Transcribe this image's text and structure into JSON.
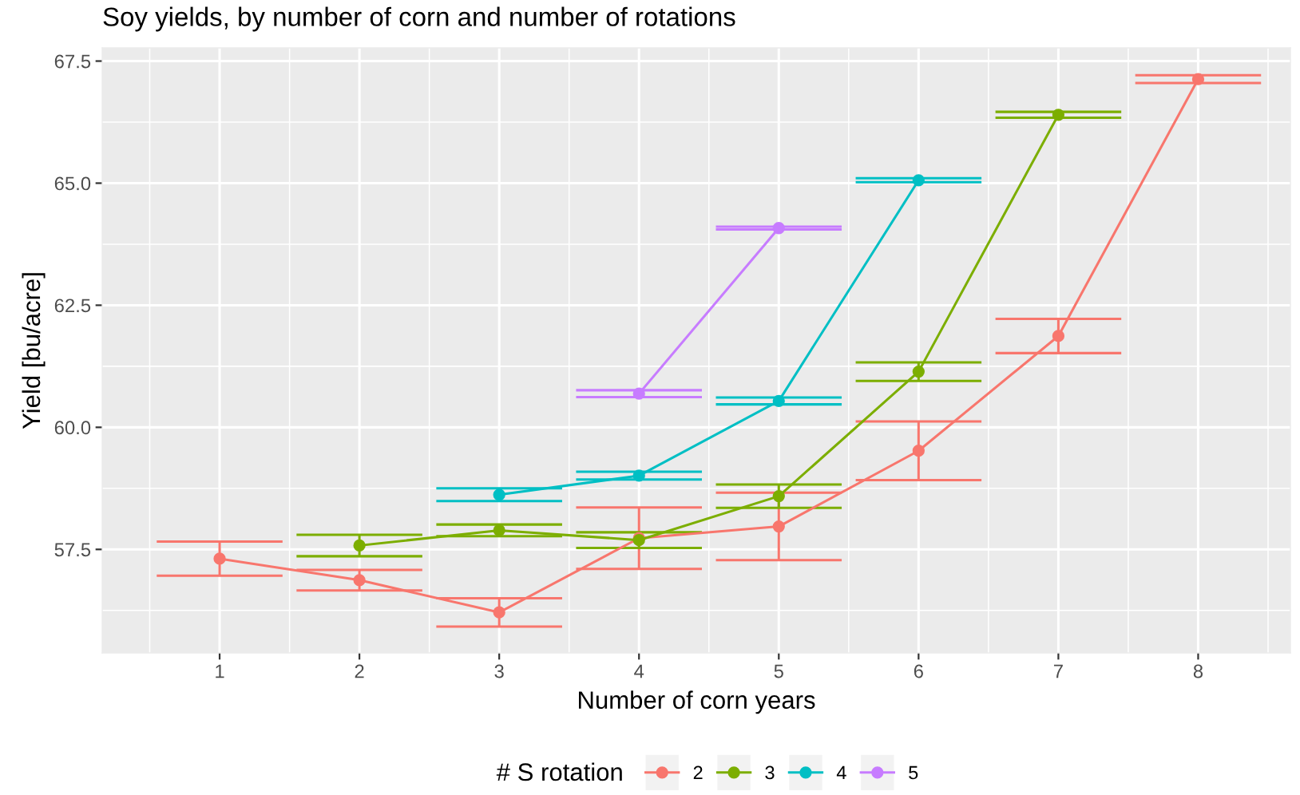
{
  "chart_data": {
    "type": "line",
    "title": "Soy yields, by number of corn and number of rotations",
    "xlabel": "Number of corn years",
    "ylabel": "Yield [bu/acre]",
    "legend_title": "# S rotation",
    "xlim": [
      0.16,
      8.66
    ],
    "ylim": [
      55.38,
      67.77
    ],
    "xticks": [
      1,
      2,
      3,
      4,
      5,
      6,
      7,
      8
    ],
    "yticks": [
      57.5,
      {
        "value": 60,
        "label": "60.0"
      },
      62.5,
      {
        "value": 65,
        "label": "65.0"
      },
      67.5
    ],
    "grid": true,
    "legend": "bottom",
    "marker": "circle",
    "line_style": "solid",
    "series": [
      {
        "name": "2",
        "color": "#f8766d",
        "x": [
          1,
          2,
          3,
          4,
          5,
          6,
          7,
          8
        ],
        "values": [
          57.31,
          56.87,
          56.21,
          57.73,
          57.97,
          59.52,
          61.87,
          67.13
        ],
        "errors": [
          0.35,
          0.21,
          0.29,
          0.63,
          0.69,
          0.6,
          0.35,
          0.08
        ]
      },
      {
        "name": "3",
        "color": "#7cae00",
        "x": [
          2,
          3,
          4,
          5,
          6,
          7
        ],
        "values": [
          57.58,
          57.89,
          57.69,
          58.59,
          61.14,
          66.4
        ],
        "errors": [
          0.22,
          0.12,
          0.16,
          0.24,
          0.19,
          0.06
        ]
      },
      {
        "name": "4",
        "color": "#00bfc4",
        "x": [
          3,
          4,
          5,
          6
        ],
        "values": [
          58.62,
          59.01,
          60.54,
          65.06
        ],
        "errors": [
          0.13,
          0.08,
          0.07,
          0.04
        ]
      },
      {
        "name": "5",
        "color": "#c77cff",
        "x": [
          4,
          5
        ],
        "values": [
          60.69,
          64.08
        ],
        "errors": [
          0.07,
          0.03
        ]
      }
    ]
  }
}
